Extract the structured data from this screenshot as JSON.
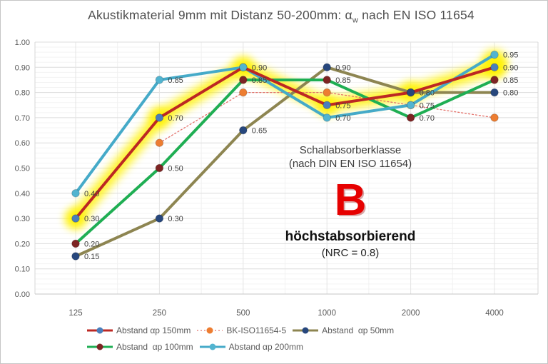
{
  "window": {
    "background": "#ffffff",
    "border_color": "#c6c6c6"
  },
  "title": {
    "text_before_sub": "Akustikmaterial 9mm mit Distanz 50-200mm: α",
    "subscript": "w",
    "text_after_sub": " nach EN ISO 11654"
  },
  "annotation": {
    "line1": "Schallabsorberklasse",
    "line2": "(nach DIN EN ISO 11654)",
    "class_letter": "B",
    "class_color": "#e60000",
    "descriptor": "höchstabsorbierend",
    "nrc": "(NRC = 0.8)"
  },
  "chart_data": {
    "type": "line",
    "title": "Akustikmaterial 9mm mit Distanz 50-200mm: αw nach EN ISO 11654",
    "xlabel": "",
    "ylabel": "",
    "x_scale": "log-octaves",
    "categories": [
      "125",
      "250",
      "500",
      "1000",
      "2000",
      "4000"
    ],
    "y_ticks": [
      "0.00",
      "0.10",
      "0.20",
      "0.30",
      "0.40",
      "0.50",
      "0.60",
      "0.70",
      "0.80",
      "0.90",
      "1.00"
    ],
    "ylim": [
      0,
      1
    ],
    "grid": true,
    "legend_position": "bottom",
    "highlight_color": "#fff200",
    "legend_rows": [
      [
        0,
        1,
        2
      ],
      [
        3,
        4
      ]
    ],
    "series": [
      {
        "name": "Abstand αp 150mm",
        "line_color": "#bc2823",
        "marker_color": "#4a7ebb",
        "line_width": 4,
        "dash": null,
        "highlight": true,
        "values": [
          0.3,
          0.7,
          0.9,
          0.75,
          0.8,
          0.9
        ],
        "point_labels": [
          "0.30",
          "0.70",
          "0.90",
          "0.75",
          "0.80",
          "0.90"
        ]
      },
      {
        "name": "BK-ISO11654-5",
        "line_color": "#e37069",
        "marker_color": "#ed7d31",
        "line_width": 1.3,
        "dash": "2 3",
        "highlight": false,
        "values": [
          null,
          0.6,
          0.8,
          0.8,
          0.75,
          0.7
        ],
        "point_labels": [
          null,
          null,
          null,
          null,
          null,
          null
        ]
      },
      {
        "name": "Abstand  αp 50mm",
        "line_color": "#8d8551",
        "marker_color": "#27477d",
        "line_width": 4,
        "dash": null,
        "highlight": false,
        "values": [
          0.15,
          0.3,
          0.65,
          0.9,
          0.8,
          0.8
        ],
        "point_labels": [
          "0.15",
          "0.30",
          "0.65",
          "0.90",
          null,
          "0.80"
        ]
      },
      {
        "name": "Abstand  αp 100mm",
        "line_color": "#1fae53",
        "marker_color": "#7d2423",
        "line_width": 4,
        "dash": null,
        "highlight": false,
        "values": [
          0.2,
          0.5,
          0.85,
          0.85,
          0.7,
          0.85
        ],
        "point_labels": [
          "0.20",
          "0.50",
          "0.85",
          "0.85",
          "0.70",
          "0.85"
        ]
      },
      {
        "name": "Abstand αp 200mm",
        "line_color": "#45aac8",
        "marker_color": "#52b4d0",
        "line_width": 4,
        "dash": null,
        "highlight": false,
        "values": [
          0.4,
          0.85,
          0.9,
          0.7,
          0.75,
          0.95
        ],
        "point_labels": [
          "0.40",
          "0.85",
          null,
          "0.70",
          "0.75",
          "0.95"
        ]
      }
    ],
    "line_draw_order": [
      1,
      2,
      3,
      4,
      0
    ],
    "marker_draw_order": [
      0,
      1,
      3,
      2,
      4
    ]
  }
}
